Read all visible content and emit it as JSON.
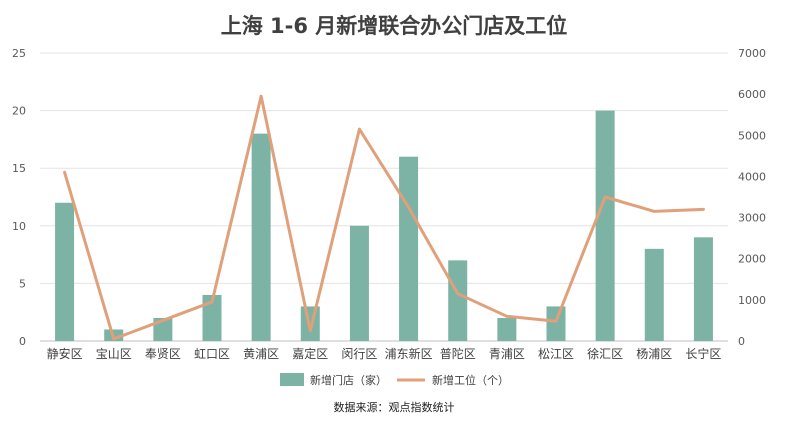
{
  "chart_data": {
    "type": "bar+line",
    "title": "上海 1-6 月新增联合办公门店及工位",
    "source": "数据来源：观点指数统计",
    "categories": [
      "静安区",
      "宝山区",
      "奉贤区",
      "虹口区",
      "黄浦区",
      "嘉定区",
      "闵行区",
      "浦东新区",
      "普陀区",
      "青浦区",
      "松江区",
      "徐汇区",
      "杨浦区",
      "长宁区"
    ],
    "series": [
      {
        "name": "新增门店（家）",
        "type": "bar",
        "axis": "left",
        "color": "#7db3a4",
        "values": [
          12,
          1,
          2,
          4,
          18,
          3,
          10,
          16,
          7,
          2,
          3,
          20,
          8,
          9
        ]
      },
      {
        "name": "新增工位（个）",
        "type": "line",
        "axis": "right",
        "color": "#e0a07a",
        "values": [
          4100,
          50,
          500,
          950,
          5950,
          250,
          5150,
          3250,
          1150,
          600,
          480,
          3500,
          3150,
          3200
        ]
      }
    ],
    "y_left": {
      "min": 0,
      "max": 25,
      "ticks": [
        0,
        5,
        10,
        15,
        20,
        25
      ]
    },
    "y_right": {
      "min": 0,
      "max": 7000,
      "ticks": [
        0,
        1000,
        2000,
        3000,
        4000,
        5000,
        6000,
        7000
      ]
    },
    "grid": true,
    "legend_position": "bottom"
  }
}
